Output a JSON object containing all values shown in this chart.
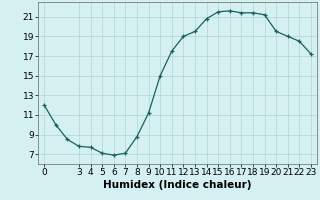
{
  "x": [
    0,
    1,
    2,
    3,
    4,
    5,
    6,
    7,
    8,
    9,
    10,
    11,
    12,
    13,
    14,
    15,
    16,
    17,
    18,
    19,
    20,
    21,
    22,
    23
  ],
  "y": [
    12.0,
    10.0,
    8.5,
    7.8,
    7.7,
    7.1,
    6.9,
    7.1,
    8.8,
    11.2,
    15.0,
    17.5,
    19.0,
    19.5,
    20.8,
    21.5,
    21.6,
    21.4,
    21.4,
    21.2,
    19.5,
    19.0,
    18.5,
    17.2
  ],
  "title": "",
  "xlabel": "Humidex (Indice chaleur)",
  "ylabel": "",
  "xlim": [
    -0.5,
    23.5
  ],
  "ylim": [
    6.0,
    22.5
  ],
  "yticks": [
    7,
    9,
    11,
    13,
    15,
    17,
    19,
    21
  ],
  "xticks": [
    0,
    3,
    4,
    5,
    6,
    7,
    8,
    9,
    10,
    11,
    12,
    13,
    14,
    15,
    16,
    17,
    18,
    19,
    20,
    21,
    22,
    23
  ],
  "bg_color": "#d4f0f0",
  "grid_color": "#b8d8d8",
  "line_color": "#1a6060",
  "marker_color": "#1a6060",
  "xlabel_fontsize": 7.5,
  "tick_fontsize": 6.5
}
